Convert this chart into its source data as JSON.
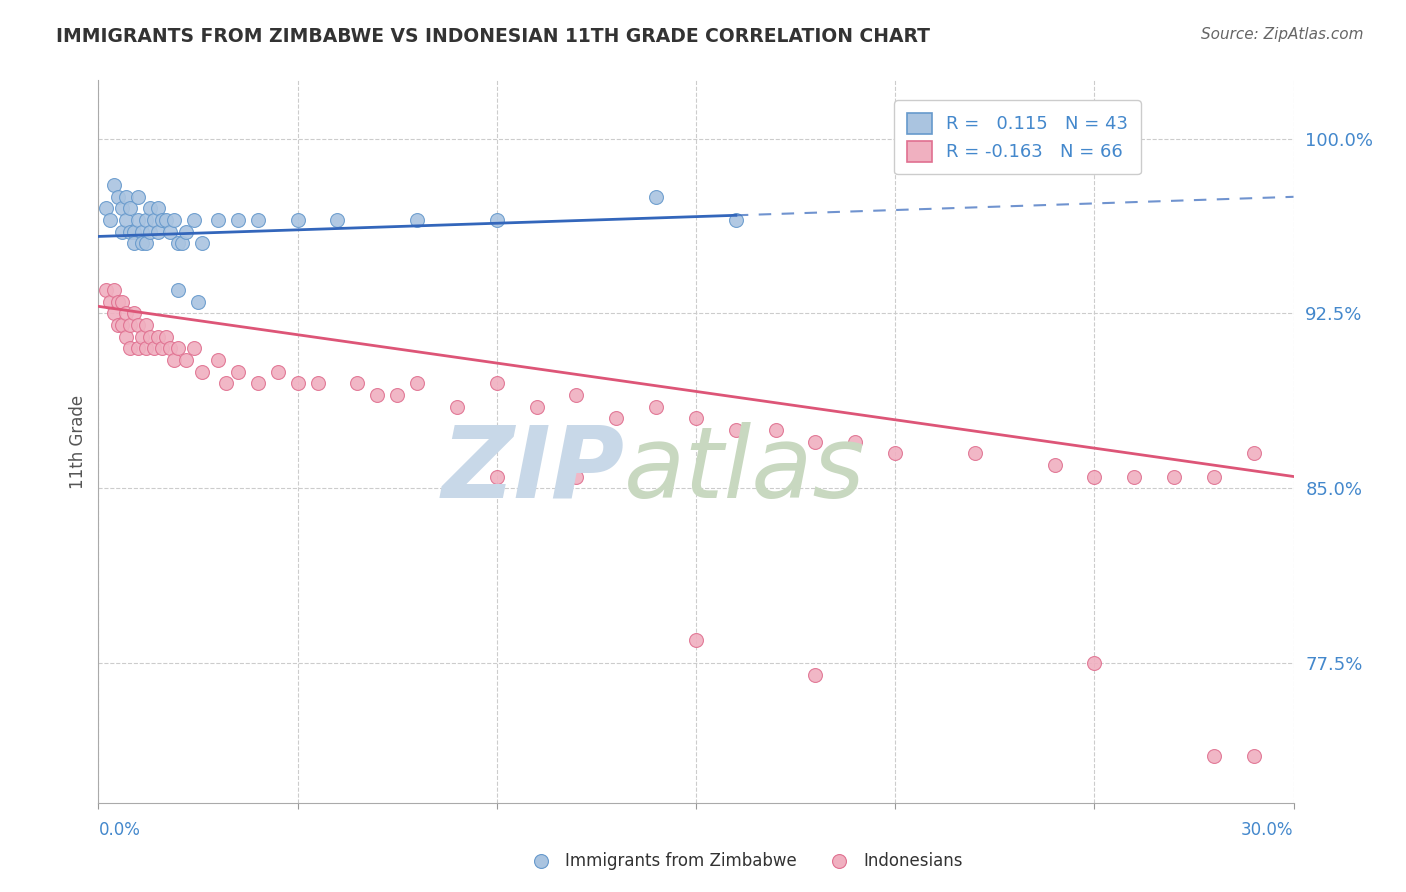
{
  "title": "IMMIGRANTS FROM ZIMBABWE VS INDONESIAN 11TH GRADE CORRELATION CHART",
  "source_text": "Source: ZipAtlas.com",
  "ylabel": "11th Grade",
  "y_ticks": [
    0.775,
    0.85,
    0.925,
    1.0
  ],
  "y_tick_labels": [
    "77.5%",
    "85.0%",
    "92.5%",
    "100.0%"
  ],
  "x_min": 0.0,
  "x_max": 0.3,
  "y_min": 0.715,
  "y_max": 1.025,
  "blue_R": 0.115,
  "blue_N": 43,
  "pink_R": -0.163,
  "pink_N": 66,
  "blue_color": "#aac4e0",
  "pink_color": "#f0b0c0",
  "blue_edge_color": "#6699cc",
  "pink_edge_color": "#e07090",
  "blue_line_color": "#3366bb",
  "pink_line_color": "#dd5577",
  "watermark_zip_color": "#c8d8e8",
  "watermark_atlas_color": "#c8d8c0",
  "grid_color": "#cccccc",
  "axis_label_color": "#4488cc",
  "legend_text_color": "#4488cc",
  "title_color": "#333333",
  "source_color": "#666666",
  "blue_scatter_x": [
    0.002,
    0.003,
    0.004,
    0.005,
    0.006,
    0.006,
    0.007,
    0.007,
    0.008,
    0.008,
    0.009,
    0.009,
    0.01,
    0.01,
    0.011,
    0.011,
    0.012,
    0.012,
    0.013,
    0.013,
    0.014,
    0.015,
    0.015,
    0.016,
    0.017,
    0.018,
    0.019,
    0.02,
    0.021,
    0.022,
    0.024,
    0.026,
    0.03,
    0.035,
    0.04,
    0.05,
    0.06,
    0.08,
    0.1,
    0.14,
    0.16,
    0.02,
    0.025
  ],
  "blue_scatter_y": [
    0.97,
    0.965,
    0.98,
    0.975,
    0.97,
    0.96,
    0.975,
    0.965,
    0.96,
    0.97,
    0.96,
    0.955,
    0.975,
    0.965,
    0.96,
    0.955,
    0.965,
    0.955,
    0.97,
    0.96,
    0.965,
    0.97,
    0.96,
    0.965,
    0.965,
    0.96,
    0.965,
    0.955,
    0.955,
    0.96,
    0.965,
    0.955,
    0.965,
    0.965,
    0.965,
    0.965,
    0.965,
    0.965,
    0.965,
    0.975,
    0.965,
    0.935,
    0.93
  ],
  "pink_scatter_x": [
    0.002,
    0.003,
    0.004,
    0.004,
    0.005,
    0.005,
    0.006,
    0.006,
    0.007,
    0.007,
    0.008,
    0.008,
    0.009,
    0.01,
    0.01,
    0.011,
    0.012,
    0.012,
    0.013,
    0.014,
    0.015,
    0.016,
    0.017,
    0.018,
    0.019,
    0.02,
    0.022,
    0.024,
    0.026,
    0.03,
    0.032,
    0.035,
    0.04,
    0.045,
    0.05,
    0.055,
    0.065,
    0.07,
    0.075,
    0.08,
    0.09,
    0.1,
    0.11,
    0.12,
    0.13,
    0.14,
    0.15,
    0.16,
    0.17,
    0.18,
    0.19,
    0.2,
    0.22,
    0.24,
    0.25,
    0.26,
    0.27,
    0.28,
    0.29,
    0.1,
    0.12,
    0.15,
    0.18,
    0.25,
    0.28,
    0.29
  ],
  "pink_scatter_y": [
    0.935,
    0.93,
    0.935,
    0.925,
    0.93,
    0.92,
    0.93,
    0.92,
    0.925,
    0.915,
    0.92,
    0.91,
    0.925,
    0.92,
    0.91,
    0.915,
    0.92,
    0.91,
    0.915,
    0.91,
    0.915,
    0.91,
    0.915,
    0.91,
    0.905,
    0.91,
    0.905,
    0.91,
    0.9,
    0.905,
    0.895,
    0.9,
    0.895,
    0.9,
    0.895,
    0.895,
    0.895,
    0.89,
    0.89,
    0.895,
    0.885,
    0.895,
    0.885,
    0.89,
    0.88,
    0.885,
    0.88,
    0.875,
    0.875,
    0.87,
    0.87,
    0.865,
    0.865,
    0.86,
    0.855,
    0.855,
    0.855,
    0.855,
    0.865,
    0.855,
    0.855,
    0.785,
    0.77,
    0.775,
    0.735,
    0.735
  ],
  "blue_trend_x": [
    0.0,
    0.3
  ],
  "blue_trend_y": [
    0.958,
    0.975
  ],
  "blue_trend_solid_end": 0.16,
  "pink_trend_x": [
    0.0,
    0.3
  ],
  "pink_trend_y": [
    0.928,
    0.855
  ]
}
